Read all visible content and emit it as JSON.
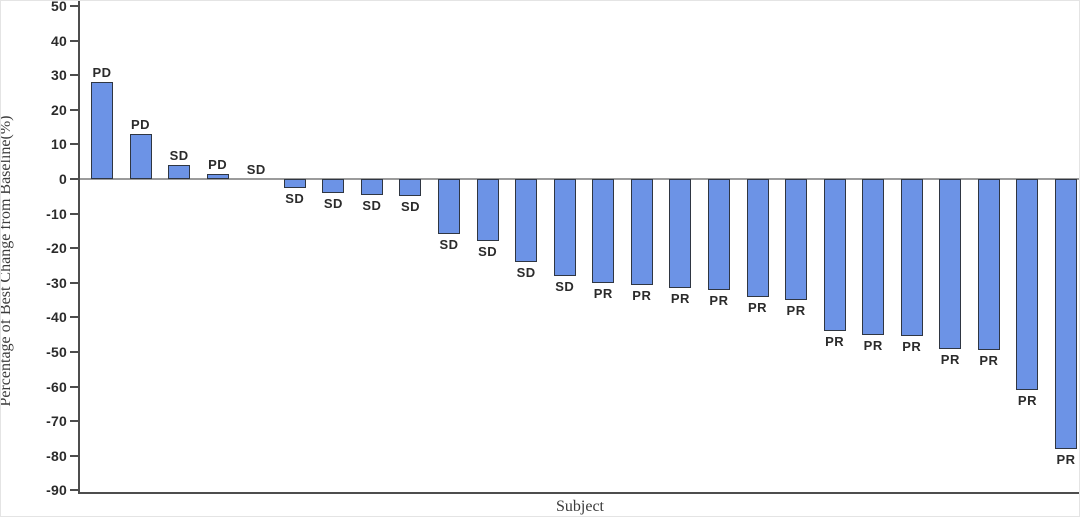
{
  "chart_data": {
    "type": "bar",
    "title": "",
    "xlabel": "Subject",
    "ylabel": "Percentage of Best Change from Baseline(%)",
    "ylim": [
      -90,
      50
    ],
    "yticks": [
      50,
      40,
      30,
      20,
      10,
      0,
      -10,
      -20,
      -30,
      -40,
      -50,
      -60,
      -70,
      -80,
      -90
    ],
    "grid": false,
    "legend_position": "none",
    "bars": [
      {
        "label": "PD",
        "value": 28
      },
      {
        "label": "PD",
        "value": 13
      },
      {
        "label": "SD",
        "value": 4
      },
      {
        "label": "PD",
        "value": 1.5
      },
      {
        "label": "SD",
        "value": 0
      },
      {
        "label": "SD",
        "value": -2.5
      },
      {
        "label": "SD",
        "value": -4
      },
      {
        "label": "SD",
        "value": -4.5
      },
      {
        "label": "SD",
        "value": -5
      },
      {
        "label": "SD",
        "value": -16
      },
      {
        "label": "SD",
        "value": -18
      },
      {
        "label": "SD",
        "value": -24
      },
      {
        "label": "SD",
        "value": -28
      },
      {
        "label": "PR",
        "value": -30
      },
      {
        "label": "PR",
        "value": -30.5
      },
      {
        "label": "PR",
        "value": -31.5
      },
      {
        "label": "PR",
        "value": -32
      },
      {
        "label": "PR",
        "value": -34
      },
      {
        "label": "PR",
        "value": -35
      },
      {
        "label": "PR",
        "value": -44
      },
      {
        "label": "PR",
        "value": -45
      },
      {
        "label": "PR",
        "value": -45.5
      },
      {
        "label": "PR",
        "value": -49
      },
      {
        "label": "PR",
        "value": -49.5
      },
      {
        "label": "PR",
        "value": -61
      },
      {
        "label": "PR",
        "value": -78
      }
    ]
  },
  "style": {
    "bar_fill": "#6C93E6",
    "bar_border": "#2F3642",
    "axis_color": "#4D4D4D",
    "zero_line_color": "#9B9B9B",
    "text_color": "#2B2B2B"
  }
}
